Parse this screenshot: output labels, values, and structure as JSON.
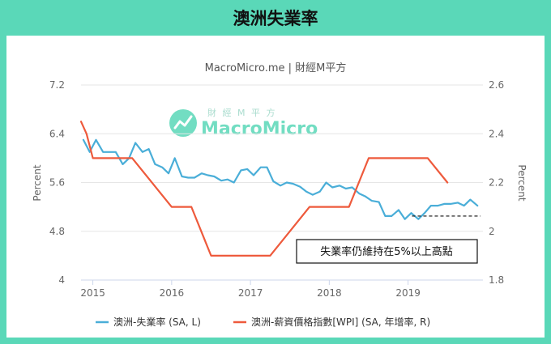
{
  "header": {
    "title": "澳洲失業率"
  },
  "chart_data": {
    "type": "line",
    "subtitle": "MacroMicro.me | 財經M平方",
    "watermark": {
      "brand": "MacroMicro",
      "tagline": "財 經 M 平 方"
    },
    "left_axis": {
      "label": "Percent",
      "ticks": [
        "7.2",
        "6.4",
        "5.6",
        "4.8",
        "4"
      ],
      "min": 4,
      "max": 7.2
    },
    "right_axis": {
      "label": "Percent",
      "ticks": [
        "2.6",
        "2.4",
        "2.2",
        "2",
        "1.8"
      ],
      "min": 1.8,
      "max": 2.6
    },
    "x_axis": {
      "ticks": [
        "2015",
        "2016",
        "2017",
        "2018",
        "2019"
      ],
      "range": [
        2014.85,
        2019.95
      ]
    },
    "annotation": {
      "text": "失業率仍維持在5%以上高點",
      "reference_value": 5.05
    },
    "colors": {
      "unemployment": "#4aaed8",
      "wpi": "#ee5a3c"
    },
    "series": [
      {
        "name": "澳洲-失業率 (SA, L)",
        "axis": "left",
        "x": [
          2014.88,
          2014.96,
          2015.04,
          2015.13,
          2015.21,
          2015.29,
          2015.38,
          2015.46,
          2015.54,
          2015.63,
          2015.71,
          2015.79,
          2015.88,
          2015.96,
          2016.04,
          2016.13,
          2016.21,
          2016.29,
          2016.38,
          2016.46,
          2016.54,
          2016.63,
          2016.71,
          2016.79,
          2016.88,
          2016.96,
          2017.04,
          2017.13,
          2017.21,
          2017.29,
          2017.38,
          2017.46,
          2017.54,
          2017.63,
          2017.71,
          2017.79,
          2017.88,
          2017.96,
          2018.04,
          2018.13,
          2018.21,
          2018.29,
          2018.38,
          2018.46,
          2018.54,
          2018.63,
          2018.71,
          2018.79,
          2018.88,
          2018.96,
          2019.04,
          2019.13,
          2019.21,
          2019.29,
          2019.38,
          2019.46,
          2019.54,
          2019.63,
          2019.71,
          2019.79,
          2019.88
        ],
        "values": [
          6.3,
          6.1,
          6.3,
          6.1,
          6.1,
          6.1,
          5.9,
          6.0,
          6.25,
          6.1,
          6.15,
          5.9,
          5.85,
          5.75,
          6.0,
          5.7,
          5.68,
          5.68,
          5.75,
          5.72,
          5.7,
          5.63,
          5.65,
          5.6,
          5.8,
          5.82,
          5.72,
          5.85,
          5.85,
          5.62,
          5.55,
          5.6,
          5.58,
          5.53,
          5.45,
          5.4,
          5.45,
          5.6,
          5.52,
          5.55,
          5.5,
          5.52,
          5.42,
          5.37,
          5.3,
          5.28,
          5.05,
          5.05,
          5.15,
          5.0,
          5.1,
          5.0,
          5.1,
          5.22,
          5.22,
          5.25,
          5.25,
          5.27,
          5.22,
          5.32,
          5.22
        ]
      },
      {
        "name": "澳洲-薪資價格指數[WPI] (SA, 年增率, R)",
        "axis": "right",
        "x": [
          2014.85,
          2014.92,
          2015.0,
          2015.25,
          2015.5,
          2016.0,
          2016.25,
          2016.5,
          2016.75,
          2017.0,
          2017.25,
          2017.5,
          2017.75,
          2018.0,
          2018.25,
          2018.5,
          2018.75,
          2019.0,
          2019.25,
          2019.5
        ],
        "values": [
          2.45,
          2.4,
          2.3,
          2.3,
          2.3,
          2.1,
          2.1,
          1.9,
          1.9,
          1.9,
          1.9,
          2.0,
          2.1,
          2.1,
          2.1,
          2.3,
          2.3,
          2.3,
          2.3,
          2.2
        ]
      }
    ]
  }
}
